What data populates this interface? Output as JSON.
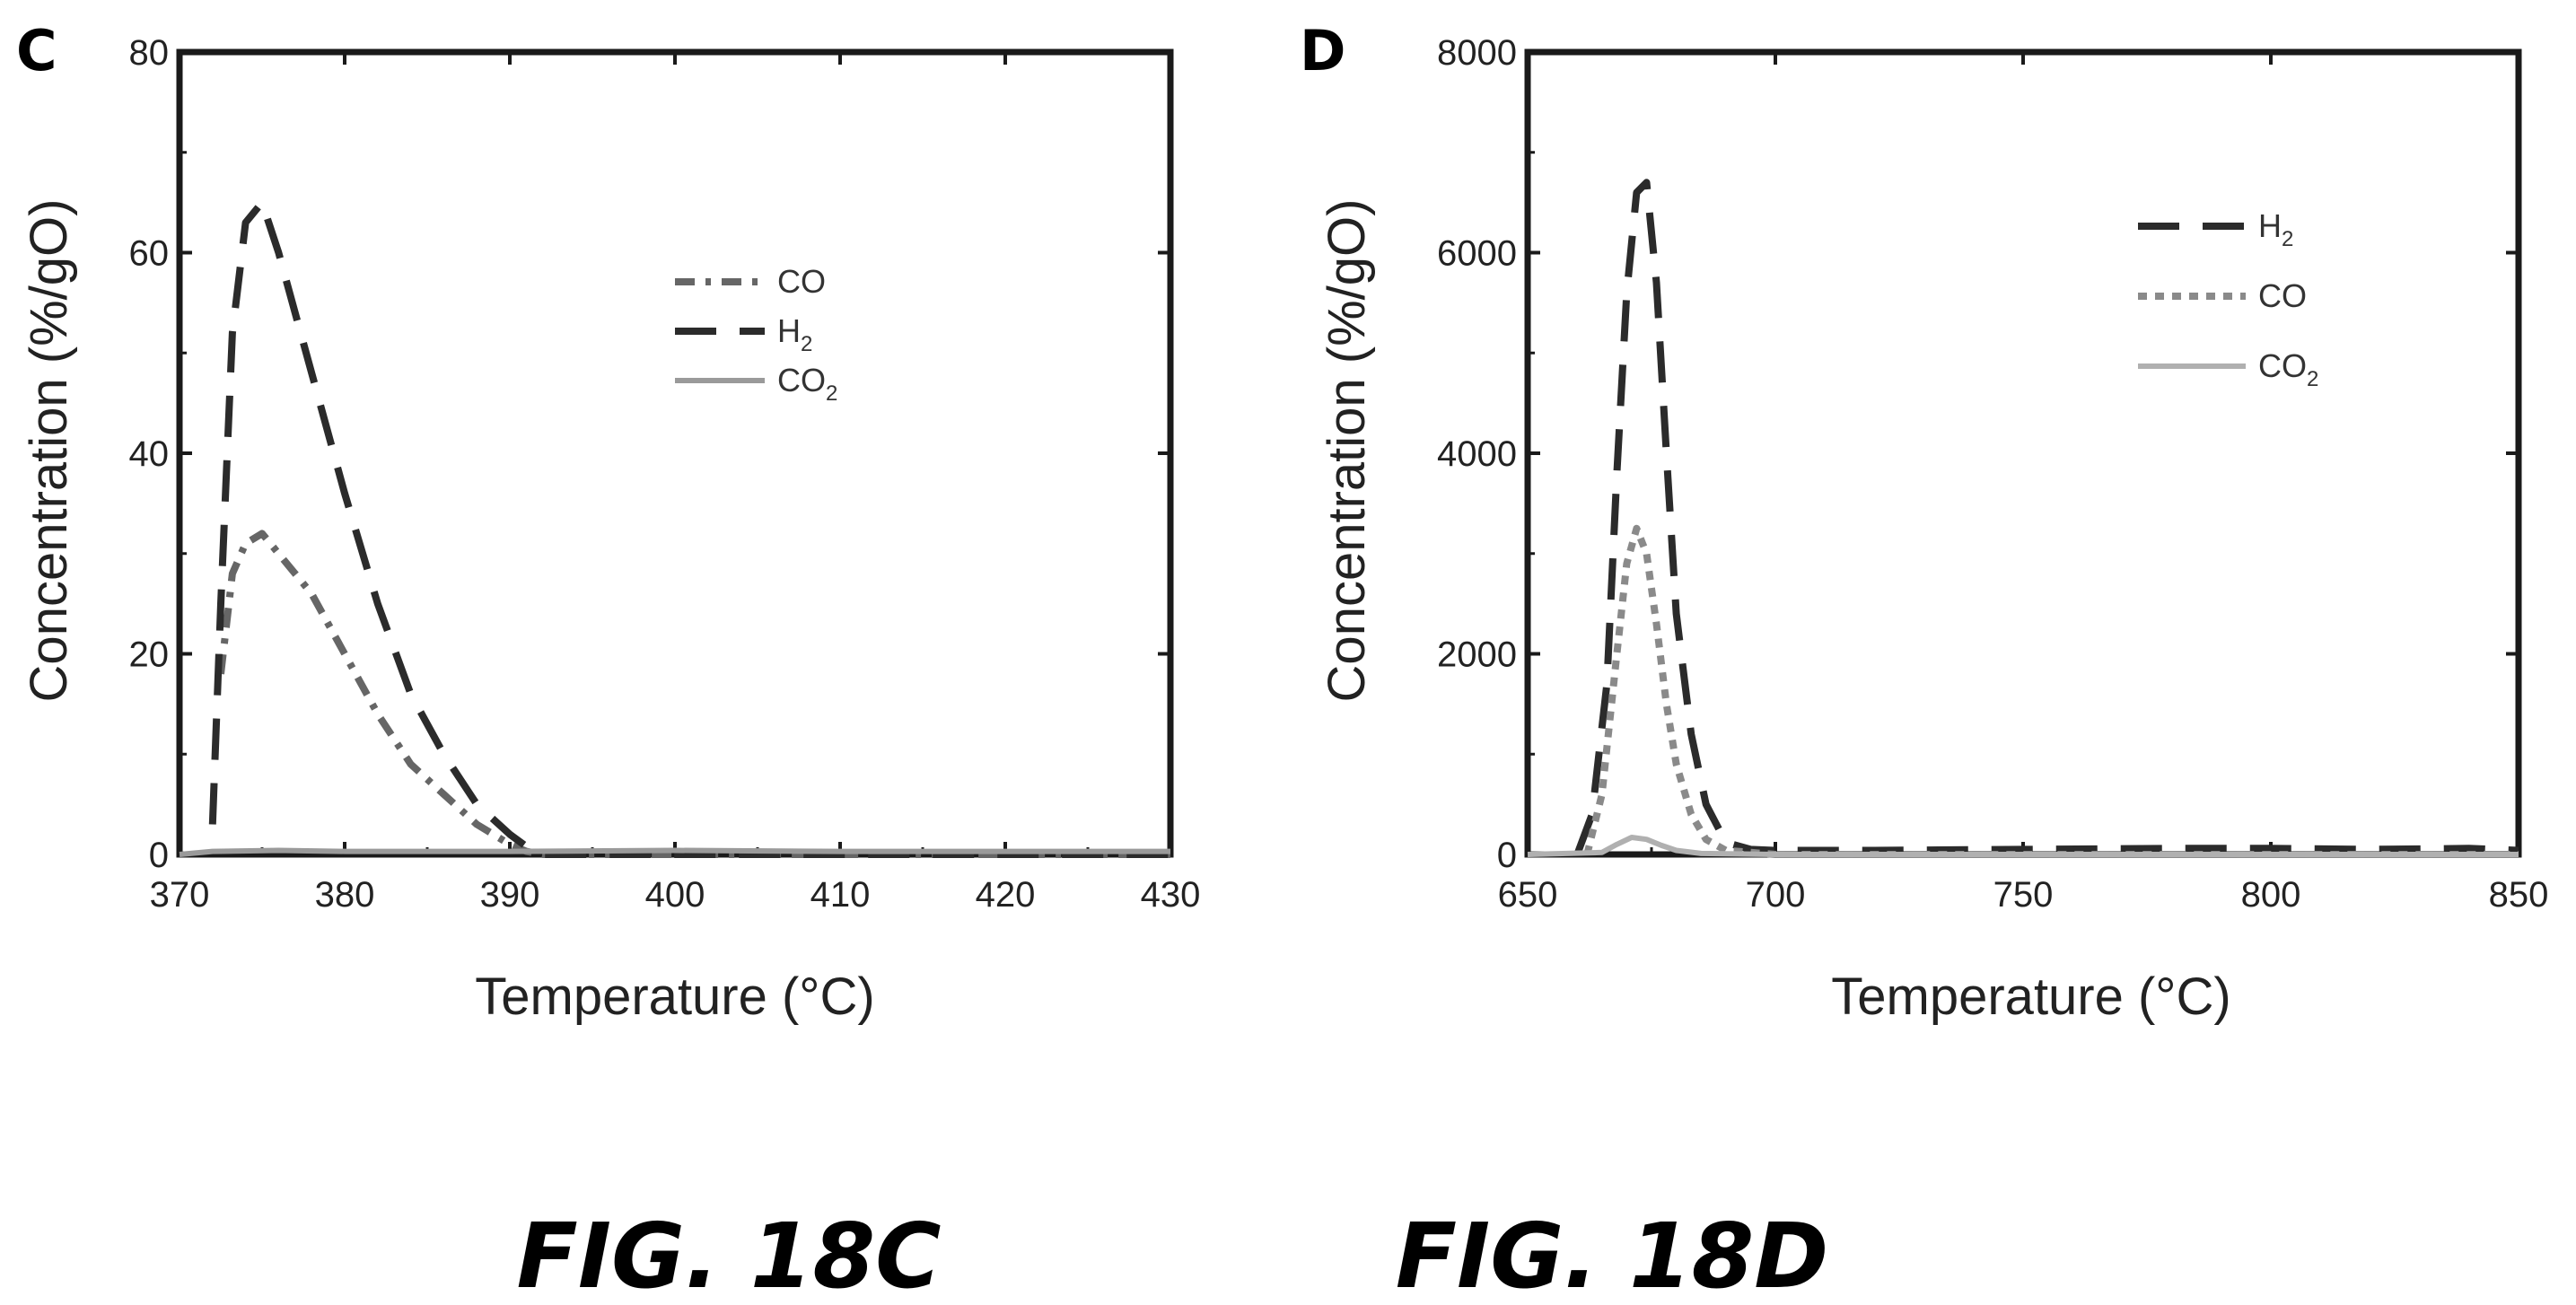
{
  "chart_data": [
    {
      "type": "line",
      "panel": "C",
      "caption": "FIG. 18C",
      "xlabel": "Temperature (°C)",
      "ylabel": "Concentration (%/gO)",
      "xlim": [
        370,
        430
      ],
      "ylim": [
        0,
        80
      ],
      "xticks": [
        370,
        380,
        390,
        400,
        410,
        420,
        430
      ],
      "yticks": [
        0,
        20,
        40,
        60,
        80
      ],
      "legend_position": "upper-center",
      "series": [
        {
          "name": "CO",
          "legend_text": "CO",
          "legend_sub": "",
          "color": "#666666",
          "style": "dash-dot",
          "x": [
            372.5,
            373.2,
            374,
            375,
            376,
            378,
            380,
            382,
            384,
            386,
            388,
            390,
            391,
            392,
            400,
            430
          ],
          "y": [
            18,
            28,
            31,
            32,
            30,
            26,
            20,
            14,
            9,
            6,
            3,
            1,
            0.3,
            0,
            0,
            0
          ]
        },
        {
          "name": "H2",
          "legend_text": "H",
          "legend_sub": "2",
          "color": "#2b2b2b",
          "style": "dashed",
          "x": [
            372,
            372.5,
            373.2,
            374,
            375,
            376,
            378,
            380,
            382,
            384,
            386,
            388,
            390,
            391,
            392,
            430
          ],
          "y": [
            3,
            25,
            52,
            63,
            65,
            60,
            48,
            36,
            25,
            16,
            10,
            5,
            2,
            0.8,
            0,
            0
          ]
        },
        {
          "name": "CO2",
          "legend_text": "CO",
          "legend_sub": "2",
          "color": "#9a9a9a",
          "style": "solid",
          "x": [
            370,
            372,
            376,
            380,
            390,
            400,
            410,
            420,
            430
          ],
          "y": [
            0,
            0.3,
            0.4,
            0.3,
            0.3,
            0.4,
            0.3,
            0.3,
            0.3
          ]
        }
      ]
    },
    {
      "type": "line",
      "panel": "D",
      "caption": "FIG. 18D",
      "xlabel": "Temperature (°C)",
      "ylabel": "Concentration (%/gO)",
      "xlim": [
        650,
        850
      ],
      "ylim": [
        0,
        8000
      ],
      "xticks": [
        650,
        700,
        750,
        800,
        850
      ],
      "yticks": [
        0,
        2000,
        4000,
        6000,
        8000
      ],
      "legend_position": "upper-right",
      "series": [
        {
          "name": "H2",
          "legend_text": "H",
          "legend_sub": "2",
          "color": "#2b2b2b",
          "style": "dashed",
          "x": [
            660,
            663,
            666,
            668,
            670,
            672,
            674,
            676,
            678,
            680,
            683,
            686,
            690,
            695,
            700,
            720,
            750,
            780,
            800,
            820,
            840,
            850
          ],
          "y": [
            0,
            400,
            1700,
            3800,
            5600,
            6600,
            6700,
            5700,
            4000,
            2400,
            1200,
            500,
            120,
            50,
            40,
            40,
            50,
            60,
            60,
            50,
            60,
            40
          ]
        },
        {
          "name": "CO",
          "legend_text": "CO",
          "legend_sub": "",
          "color": "#8a8a8a",
          "style": "dotted",
          "x": [
            662,
            665,
            668,
            670,
            672,
            674,
            676,
            678,
            680,
            683,
            686,
            690,
            700,
            850
          ],
          "y": [
            0,
            600,
            2000,
            2900,
            3250,
            3000,
            2300,
            1500,
            900,
            400,
            150,
            40,
            0,
            0
          ]
        },
        {
          "name": "CO2",
          "legend_text": "CO",
          "legend_sub": "2",
          "color": "#b0b0b0",
          "style": "solid",
          "x": [
            650,
            665,
            668,
            671,
            674,
            677,
            680,
            685,
            700,
            850
          ],
          "y": [
            0,
            20,
            100,
            170,
            150,
            90,
            40,
            10,
            0,
            0
          ]
        }
      ]
    }
  ]
}
